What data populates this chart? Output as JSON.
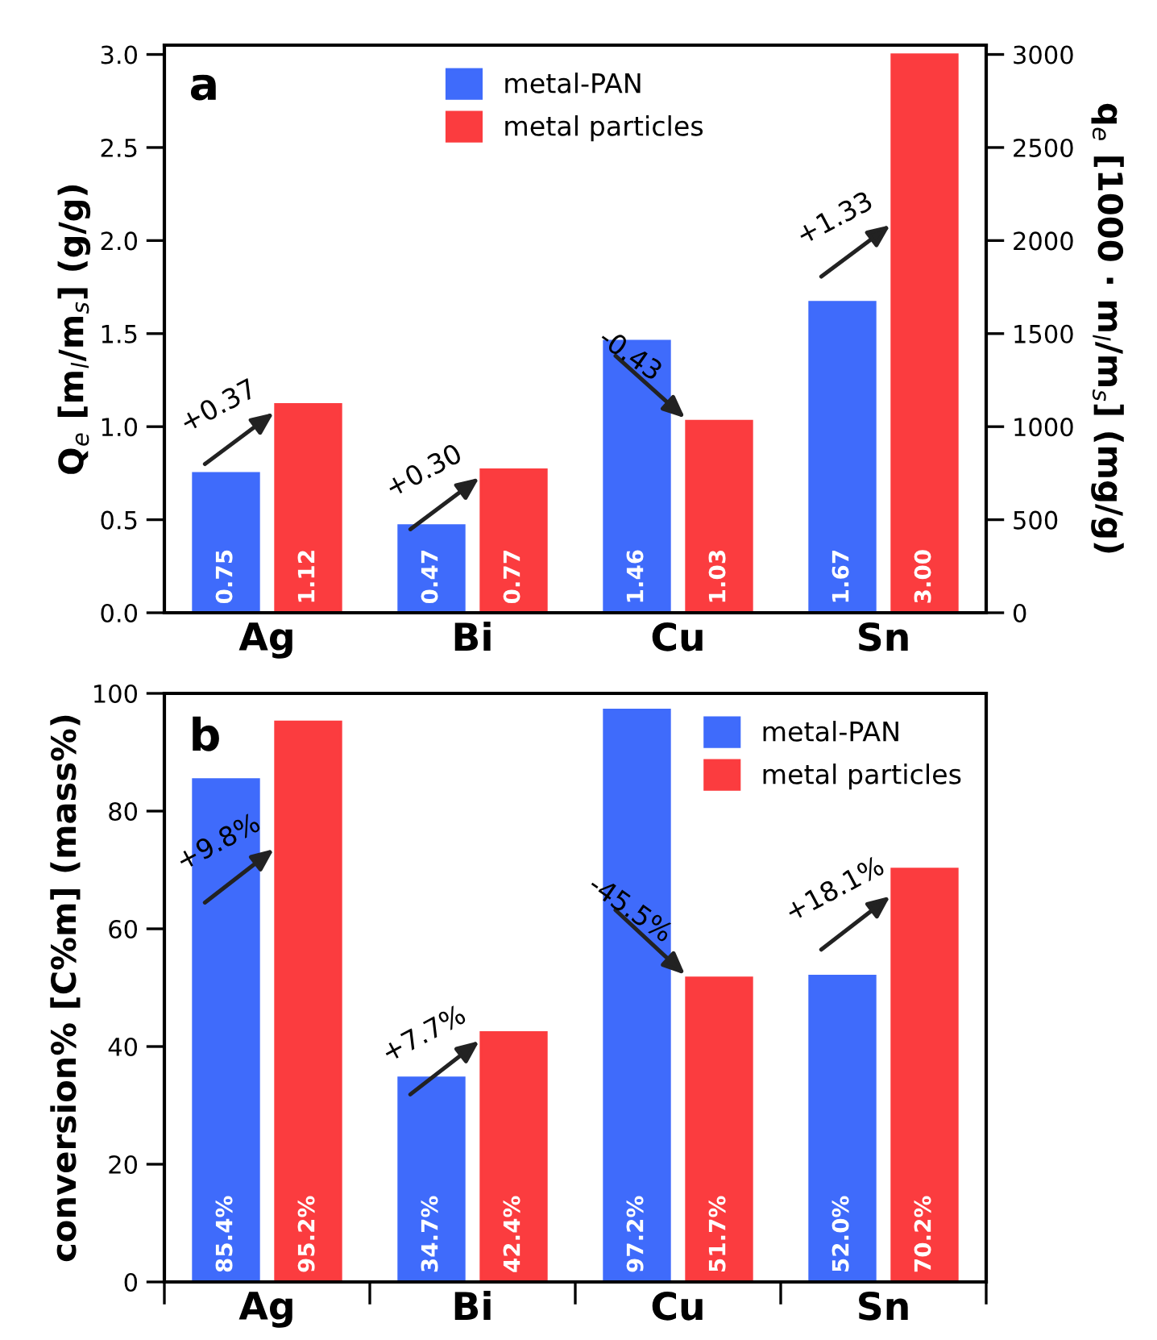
{
  "chart_data": [
    {
      "type": "bar",
      "title": "a",
      "categories": [
        "Ag",
        "Bi",
        "Cu",
        "Sn"
      ],
      "ylabel": "Q$_{e}$ [m$_{l}$/m$_{s}$] (g/g)",
      "y2label": "q$_{e}$ [1000 · m$_{l}$/m$_{s}$] (mg/g)",
      "series": [
        {
          "name": "metal-PAN",
          "color": "#3f6bfb",
          "values": [
            0.75,
            0.47,
            1.46,
            1.67
          ],
          "value_labels": [
            "0.75",
            "0.47",
            "1.46",
            "1.67"
          ]
        },
        {
          "name": "metal particles",
          "color": "#fb3c3f",
          "values": [
            1.12,
            0.77,
            1.03,
            3.0
          ],
          "value_labels": [
            "1.12",
            "0.77",
            "1.03",
            "3.00"
          ]
        }
      ],
      "ylim": [
        0,
        3.05
      ],
      "yticks": [
        {
          "value": 0,
          "label": "0.0"
        },
        0.5,
        {
          "value": 1,
          "label": "1.0"
        },
        1.5,
        {
          "value": 2,
          "label": "2.0"
        },
        2.5,
        {
          "value": 3,
          "label": "3.0"
        }
      ],
      "y2lim": [
        0,
        3050
      ],
      "y2ticks": [
        0,
        500,
        1000,
        1500,
        2000,
        2500,
        3000
      ],
      "annotations": [
        "+0.37",
        "+0.30",
        "-0.43",
        "+1.33"
      ],
      "legend": "top",
      "grid": false
    },
    {
      "type": "bar",
      "title": "b",
      "categories": [
        "Ag",
        "Bi",
        "Cu",
        "Sn"
      ],
      "ylabel": "conversion% [C%m] (mass%)",
      "series": [
        {
          "name": "metal-PAN",
          "color": "#3f6bfb",
          "values": [
            85.4,
            34.7,
            97.2,
            52.0
          ],
          "value_labels": [
            "85.4%",
            "34.7%",
            "97.2%",
            "52.0%"
          ]
        },
        {
          "name": "metal particles",
          "color": "#fb3c3f",
          "values": [
            95.2,
            42.4,
            51.7,
            70.2
          ],
          "value_labels": [
            "95.2%",
            "42.4%",
            "51.7%",
            "70.2%"
          ]
        }
      ],
      "ylim": [
        0,
        100
      ],
      "yticks": [
        0,
        20,
        40,
        60,
        80,
        100
      ],
      "annotations": [
        "+9.8%",
        "+7.7%",
        "-45.5%",
        "+18.1%"
      ],
      "legend": "top right",
      "grid": false
    }
  ]
}
